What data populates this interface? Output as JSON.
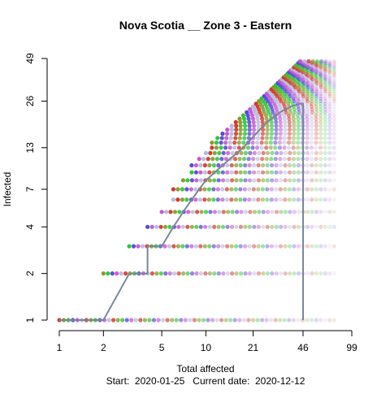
{
  "chart_data": {
    "type": "scatter",
    "title": "Nova Scotia __ Zone 3 - Eastern",
    "xlabel": "Total affected",
    "ylabel": "Infected",
    "footer": "Start:  2020-01-25   Current date:  2020-12-12",
    "x_scale": "log",
    "y_scale": "log",
    "xlim": [
      1,
      99
    ],
    "ylim": [
      1,
      49
    ],
    "x_ticks": [
      1,
      2,
      5,
      10,
      21,
      46,
      99
    ],
    "y_ticks": [
      1,
      2,
      4,
      7,
      13,
      26,
      49
    ],
    "grid": false,
    "legend": "none",
    "trajectory_color": "#7a8898",
    "trajectory": {
      "x": [
        1,
        2,
        3,
        4,
        4,
        5,
        5,
        6,
        7,
        8,
        9,
        10,
        13,
        18,
        22,
        26,
        32,
        38,
        44,
        46,
        46,
        46
      ],
      "y": [
        1,
        1,
        2,
        2,
        3,
        3,
        3,
        4,
        5,
        6,
        7,
        8,
        10,
        13,
        16,
        19,
        22,
        24,
        25,
        25,
        20,
        1
      ]
    },
    "simulation_rows": {
      "levels": [
        1,
        2,
        3,
        4,
        5,
        6,
        7,
        8,
        9,
        10,
        11,
        12,
        13,
        14,
        15,
        16,
        17,
        18,
        19,
        20,
        21,
        22,
        23,
        24,
        25,
        26,
        27,
        28,
        29,
        30,
        31,
        32,
        33,
        34,
        35,
        36,
        37,
        38,
        39,
        40,
        41,
        42,
        43,
        44,
        45,
        46,
        47
      ],
      "x_start": [
        1,
        2,
        3,
        4,
        5,
        6,
        6,
        7,
        8,
        8,
        9,
        10,
        11,
        11,
        12,
        13,
        14,
        15,
        16,
        17,
        18,
        19,
        20,
        21,
        22,
        23,
        24,
        25,
        26,
        27,
        28,
        29,
        30,
        31,
        32,
        33,
        34,
        35,
        36,
        37,
        38,
        39,
        40,
        41,
        42,
        43,
        44
      ],
      "x_end": [
        75,
        75,
        75,
        75,
        75,
        75,
        75,
        75,
        75,
        75,
        75,
        75,
        75,
        75,
        75,
        75,
        75,
        75,
        75,
        75,
        75,
        75,
        75,
        75,
        75,
        75,
        75,
        75,
        75,
        75,
        75,
        75,
        75,
        75,
        75,
        75,
        75,
        75,
        75,
        75,
        75,
        75,
        75,
        75,
        75,
        75,
        75
      ]
    },
    "series_colors": [
      "#d03a2a",
      "#8a9a30",
      "#2cc83a",
      "#5a4ad8",
      "#c45ad0",
      "#b8b8e0"
    ]
  }
}
